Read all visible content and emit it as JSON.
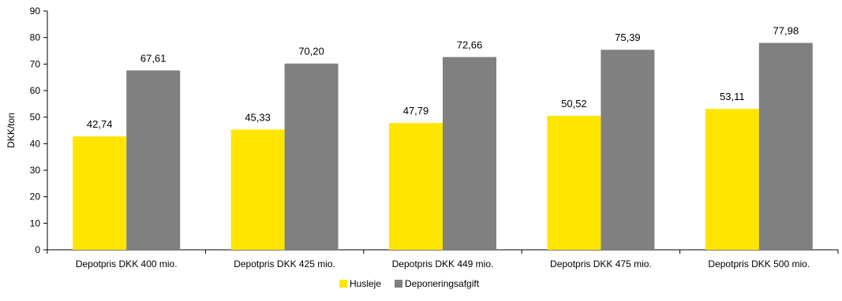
{
  "chart_data": {
    "type": "bar",
    "title": "",
    "xlabel": "",
    "ylabel": "DKK/ton",
    "ylim": [
      0,
      90
    ],
    "ytick_step": 10,
    "grid": false,
    "legend_position": "bottom",
    "categories": [
      "Depotpris DKK 400 mio.",
      "Depotpris DKK 425 mio.",
      "Depotpris DKK 449 mio.",
      "Depotpris DKK 475 mio.",
      "Depotpris DKK 500 mio."
    ],
    "series": [
      {
        "name": "Husleje",
        "color": "#FFE600",
        "values": [
          42.74,
          45.33,
          47.79,
          50.52,
          53.11
        ],
        "labels": [
          "42,74",
          "45,33",
          "47,79",
          "50,52",
          "53,11"
        ]
      },
      {
        "name": "Deponeringsafgift",
        "color": "#808080",
        "values": [
          67.61,
          70.2,
          72.66,
          75.39,
          77.98
        ],
        "labels": [
          "67,61",
          "70,20",
          "72,66",
          "75,39",
          "77,98"
        ]
      }
    ]
  }
}
